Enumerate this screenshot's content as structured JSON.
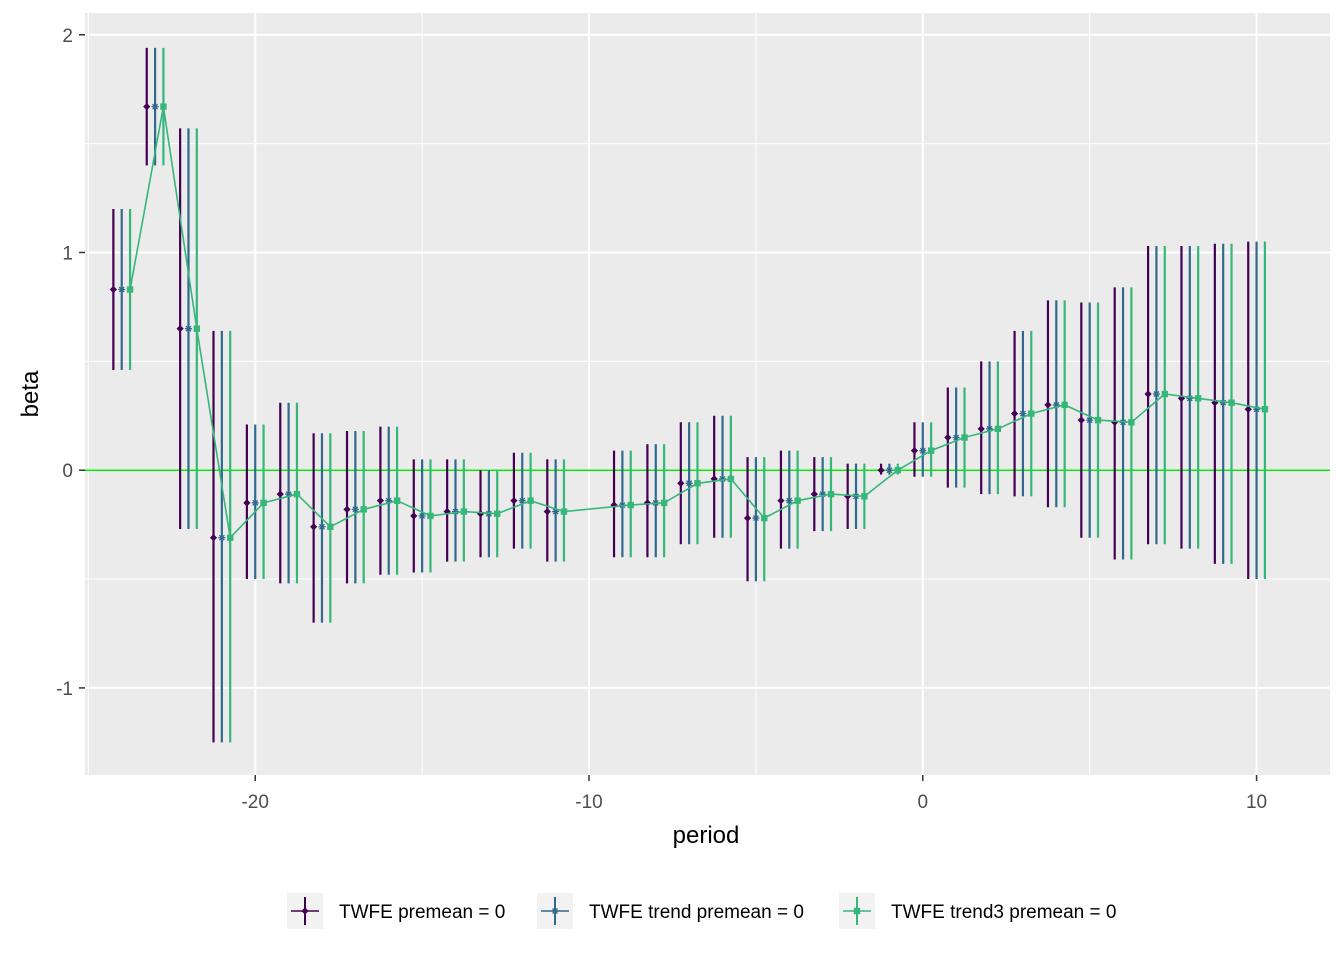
{
  "chart_data": {
    "type": "line",
    "title": "",
    "xlabel": "period",
    "ylabel": "beta",
    "xlim": [
      -25.1,
      12.2
    ],
    "ylim": [
      -1.4,
      2.1
    ],
    "x_ticks": [
      {
        "value": -20,
        "label": "-20"
      },
      {
        "value": -10,
        "label": "-10"
      },
      {
        "value": 0,
        "label": "0"
      },
      {
        "value": 10,
        "label": "10"
      }
    ],
    "y_ticks": [
      {
        "value": -1,
        "label": "-1"
      },
      {
        "value": 0,
        "label": "0"
      },
      {
        "value": 1,
        "label": "1"
      },
      {
        "value": 2,
        "label": "2"
      }
    ],
    "grid": true,
    "reference_line": {
      "y": 0,
      "color": "#00ee00"
    },
    "legend_position": "bottom",
    "periods": [
      -24,
      -23,
      -22,
      -21,
      -20,
      -19,
      -18,
      -17,
      -16,
      -15,
      -14,
      -13,
      -12,
      -11,
      -9,
      -8,
      -7,
      -6,
      -5,
      -4,
      -3,
      -2,
      -1,
      0,
      1,
      2,
      3,
      4,
      5,
      6,
      7,
      8,
      9,
      10
    ],
    "series": [
      {
        "name": "TWFE premean = 0",
        "color": "#440154",
        "x_offset": -0.25,
        "marker": "diamond",
        "line": false,
        "estimate": [
          0.83,
          1.67,
          0.65,
          -0.31,
          -0.15,
          -0.11,
          -0.26,
          -0.18,
          -0.14,
          -0.21,
          -0.19,
          -0.2,
          -0.14,
          -0.19,
          -0.16,
          -0.15,
          -0.06,
          -0.04,
          -0.22,
          -0.14,
          -0.11,
          -0.12,
          0.0,
          0.09,
          0.15,
          0.19,
          0.26,
          0.3,
          0.23,
          0.22,
          0.35,
          0.33,
          0.31,
          0.28
        ],
        "lower": [
          0.46,
          1.4,
          -0.27,
          -1.25,
          -0.5,
          -0.52,
          -0.7,
          -0.52,
          -0.48,
          -0.47,
          -0.42,
          -0.4,
          -0.36,
          -0.42,
          -0.4,
          -0.4,
          -0.34,
          -0.31,
          -0.51,
          -0.36,
          -0.28,
          -0.27,
          -0.02,
          -0.03,
          -0.08,
          -0.11,
          -0.12,
          -0.17,
          -0.31,
          -0.41,
          -0.34,
          -0.36,
          -0.43,
          -0.5
        ],
        "upper": [
          1.2,
          1.94,
          1.57,
          0.64,
          0.21,
          0.31,
          0.17,
          0.18,
          0.2,
          0.05,
          0.05,
          0.0,
          0.08,
          0.05,
          0.09,
          0.12,
          0.22,
          0.25,
          0.06,
          0.09,
          0.06,
          0.03,
          0.03,
          0.22,
          0.38,
          0.5,
          0.64,
          0.78,
          0.77,
          0.84,
          1.03,
          1.03,
          1.04,
          1.05
        ]
      },
      {
        "name": "TWFE trend premean = 0",
        "color": "#31688e",
        "x_offset": 0.0,
        "marker": "star",
        "line": false,
        "estimate": [
          0.83,
          1.67,
          0.65,
          -0.31,
          -0.15,
          -0.11,
          -0.26,
          -0.18,
          -0.14,
          -0.21,
          -0.19,
          -0.2,
          -0.14,
          -0.19,
          -0.16,
          -0.15,
          -0.06,
          -0.04,
          -0.22,
          -0.14,
          -0.11,
          -0.12,
          0.0,
          0.09,
          0.15,
          0.19,
          0.26,
          0.3,
          0.23,
          0.22,
          0.35,
          0.33,
          0.31,
          0.28
        ],
        "lower": [
          0.46,
          1.4,
          -0.27,
          -1.25,
          -0.5,
          -0.52,
          -0.7,
          -0.52,
          -0.48,
          -0.47,
          -0.42,
          -0.4,
          -0.36,
          -0.42,
          -0.4,
          -0.4,
          -0.34,
          -0.31,
          -0.51,
          -0.36,
          -0.28,
          -0.27,
          -0.02,
          -0.03,
          -0.08,
          -0.11,
          -0.12,
          -0.17,
          -0.31,
          -0.41,
          -0.34,
          -0.36,
          -0.43,
          -0.5
        ],
        "upper": [
          1.2,
          1.94,
          1.57,
          0.64,
          0.21,
          0.31,
          0.17,
          0.18,
          0.2,
          0.05,
          0.05,
          0.0,
          0.08,
          0.05,
          0.09,
          0.12,
          0.22,
          0.25,
          0.06,
          0.09,
          0.06,
          0.03,
          0.03,
          0.22,
          0.38,
          0.5,
          0.64,
          0.78,
          0.77,
          0.84,
          1.03,
          1.03,
          1.04,
          1.05
        ]
      },
      {
        "name": "TWFE trend3 premean = 0",
        "color": "#35b779",
        "x_offset": 0.25,
        "marker": "square",
        "line": true,
        "estimate": [
          0.83,
          1.67,
          0.65,
          -0.31,
          -0.15,
          -0.11,
          -0.26,
          -0.18,
          -0.14,
          -0.21,
          -0.19,
          -0.2,
          -0.14,
          -0.19,
          -0.16,
          -0.15,
          -0.06,
          -0.04,
          -0.22,
          -0.14,
          -0.11,
          -0.12,
          0.0,
          0.09,
          0.15,
          0.19,
          0.26,
          0.3,
          0.23,
          0.22,
          0.35,
          0.33,
          0.31,
          0.28
        ],
        "lower": [
          0.46,
          1.4,
          -0.27,
          -1.25,
          -0.5,
          -0.52,
          -0.7,
          -0.52,
          -0.48,
          -0.47,
          -0.42,
          -0.4,
          -0.36,
          -0.42,
          -0.4,
          -0.4,
          -0.34,
          -0.31,
          -0.51,
          -0.36,
          -0.28,
          -0.27,
          -0.02,
          -0.03,
          -0.08,
          -0.11,
          -0.12,
          -0.17,
          -0.31,
          -0.41,
          -0.34,
          -0.36,
          -0.43,
          -0.5
        ],
        "upper": [
          1.2,
          1.94,
          1.57,
          0.64,
          0.21,
          0.31,
          0.17,
          0.18,
          0.2,
          0.05,
          0.05,
          0.0,
          0.08,
          0.05,
          0.09,
          0.12,
          0.22,
          0.25,
          0.06,
          0.09,
          0.06,
          0.03,
          0.03,
          0.22,
          0.38,
          0.5,
          0.64,
          0.78,
          0.77,
          0.84,
          1.03,
          1.03,
          1.04,
          1.05
        ]
      }
    ]
  }
}
